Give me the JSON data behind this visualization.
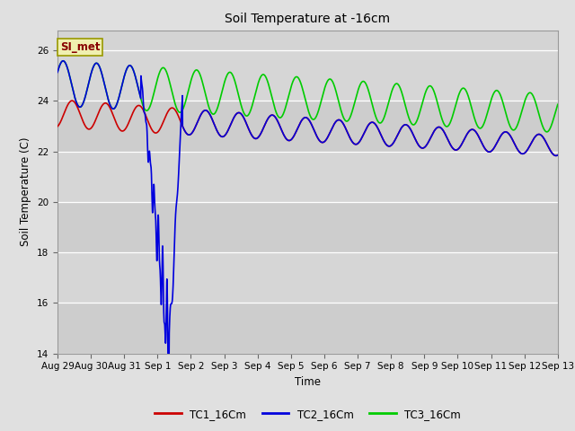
{
  "title": "Soil Temperature at -16cm",
  "xlabel": "Time",
  "ylabel": "Soil Temperature (C)",
  "ylim": [
    14,
    26.8
  ],
  "xlim": [
    0,
    15
  ],
  "fig_bg_color": "#e0e0e0",
  "plot_bg_color": "#d4d4d4",
  "annotation_text": "SI_met",
  "annotation_bg": "#f0f0b0",
  "annotation_border": "#999900",
  "x_tick_labels": [
    "Aug 29",
    "Aug 30",
    "Aug 31",
    "Sep 1",
    "Sep 2",
    "Sep 3",
    "Sep 4",
    "Sep 5",
    "Sep 6",
    "Sep 7",
    "Sep 8",
    "Sep 9",
    "Sep 10",
    "Sep 11",
    "Sep 12",
    "Sep 13"
  ],
  "y_ticks": [
    14,
    16,
    18,
    20,
    22,
    24,
    26
  ],
  "tc1_color": "#cc0000",
  "tc2_color": "#0000dd",
  "tc3_color": "#00cc00",
  "line_width": 1.2,
  "legend_labels": [
    "TC1_16Cm",
    "TC2_16Cm",
    "TC3_16Cm"
  ]
}
